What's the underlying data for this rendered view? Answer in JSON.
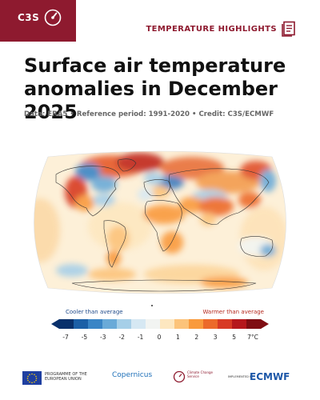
{
  "header": {
    "logo_text": "C3S",
    "section_label": "TEMPERATURE HIGHLIGHTS"
  },
  "title": "Surface air temperature anomalies in December 2025",
  "subtitle": "Data: ERA5 • Reference period: 1991-2020 • Credit: C3S/ECMWF",
  "legend": {
    "cooler_label": "Cooler than average",
    "warmer_label": "Warmer than average",
    "ticks": [
      "-7",
      "-5",
      "-3",
      "-2",
      "-1",
      "0",
      "1",
      "2",
      "3",
      "5",
      "7°C"
    ],
    "colors": [
      "#08306b",
      "#1b5fa6",
      "#3a85c6",
      "#6aaad8",
      "#a6cfe8",
      "#d6e8f3",
      "#f2f4f2",
      "#fde7c0",
      "#fcc37a",
      "#f99a3c",
      "#ec6a2a",
      "#d83a24",
      "#b5171c",
      "#7f0d12"
    ]
  },
  "footer": {
    "eu_text": "PROGRAMME OF THE EUROPEAN UNION",
    "copernicus": "Copernicus",
    "ccs_text": "Climate Change Service",
    "implemented_by": "IMPLEMENTED BY",
    "ecmwf": "ECMWF"
  }
}
